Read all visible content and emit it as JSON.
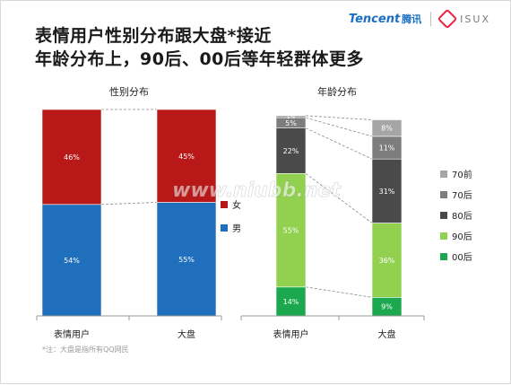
{
  "header": {
    "title_line1": "表情用户性别分布跟大盘*接近",
    "title_line2": "年龄分布上，90后、00后等年轻群体更多"
  },
  "logo": {
    "brand": "Tencent",
    "brand_cn": "腾讯",
    "sub": "ISUX"
  },
  "watermark": "www.niubb.net",
  "footnote": "*注：大盘是指所有QQ网民",
  "chart_data": [
    {
      "type": "bar",
      "stacked": true,
      "title": "性别分布",
      "categories": [
        "表情用户",
        "大盘"
      ],
      "series": [
        {
          "name": "男",
          "color": "#1f6fbd",
          "values": [
            54,
            55
          ],
          "labels": [
            "54%",
            "55%"
          ]
        },
        {
          "name": "女",
          "color": "#b81818",
          "values": [
            46,
            45
          ],
          "labels": [
            "46%",
            "45%"
          ]
        }
      ],
      "ylim": [
        0,
        100
      ],
      "legend": "right"
    },
    {
      "type": "bar",
      "stacked": true,
      "title": "年龄分布",
      "categories": [
        "表情用户",
        "大盘"
      ],
      "series": [
        {
          "name": "00后",
          "color": "#1ba84f",
          "values": [
            14,
            9
          ],
          "labels": [
            "14%",
            "9%"
          ]
        },
        {
          "name": "90后",
          "color": "#92d050",
          "values": [
            55,
            36
          ],
          "labels": [
            "55%",
            "36%"
          ]
        },
        {
          "name": "80后",
          "color": "#4a4a4a",
          "values": [
            22,
            31
          ],
          "labels": [
            "22%",
            "31%"
          ]
        },
        {
          "name": "70后",
          "color": "#7d7d7d",
          "values": [
            5,
            11
          ],
          "labels": [
            "5%",
            "11%"
          ]
        },
        {
          "name": "70前",
          "color": "#a6a6a6",
          "values": [
            1,
            8
          ],
          "labels": [
            "1%",
            "8%"
          ]
        }
      ],
      "ylim": [
        0,
        100
      ],
      "legend": "right"
    }
  ]
}
